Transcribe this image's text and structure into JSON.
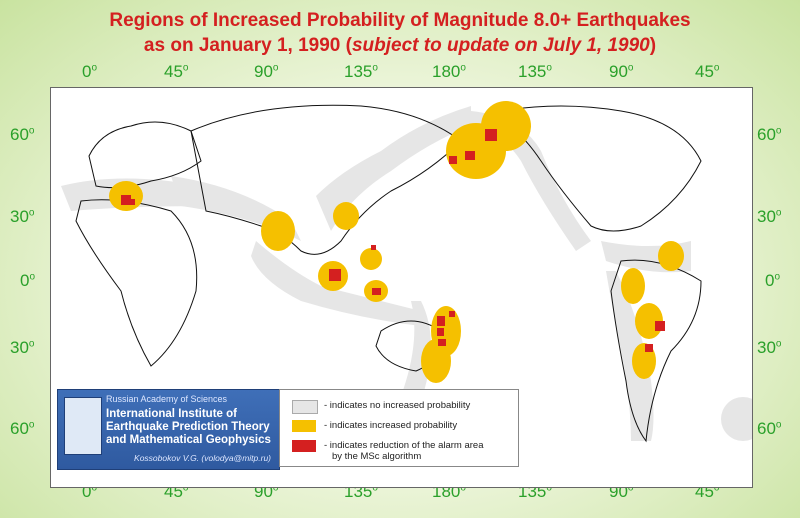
{
  "title": {
    "line1": "Regions of Increased Probability of Magnitude 8.0+ Earthquakes",
    "line2_prefix": "as on January 1, 1990 (",
    "line2_italic": "subject to update on July 1, 1990",
    "line2_suffix": ")"
  },
  "longitude_ticks": [
    "0",
    "45",
    "90",
    "135",
    "180",
    "135",
    "90",
    "45"
  ],
  "latitude_ticks": [
    "60",
    "30",
    "0",
    "30",
    "60"
  ],
  "degree_symbol": "o",
  "institution": {
    "academy": "Russian Academy of Sciences",
    "name_line1": "International Institute of",
    "name_line2": "Earthquake Prediction Theory",
    "name_line3": "and Mathematical Geophysics",
    "author": "Kossobokov V.G. (volodya@mitp.ru)"
  },
  "legend": {
    "items": [
      {
        "color": "#e6e6e6",
        "text": "- indicates no increased probability"
      },
      {
        "color": "#f5c000",
        "text": "- indicates increased probability"
      },
      {
        "color": "#d42020",
        "text": "- indicates reduction of the alarm area",
        "text2": "by the MSc algorithm"
      }
    ]
  },
  "colors": {
    "title": "#d42020",
    "ticks": "#2aa02a",
    "no_increase": "#e6e6e6",
    "increase": "#f5c000",
    "reduction": "#d42020"
  }
}
